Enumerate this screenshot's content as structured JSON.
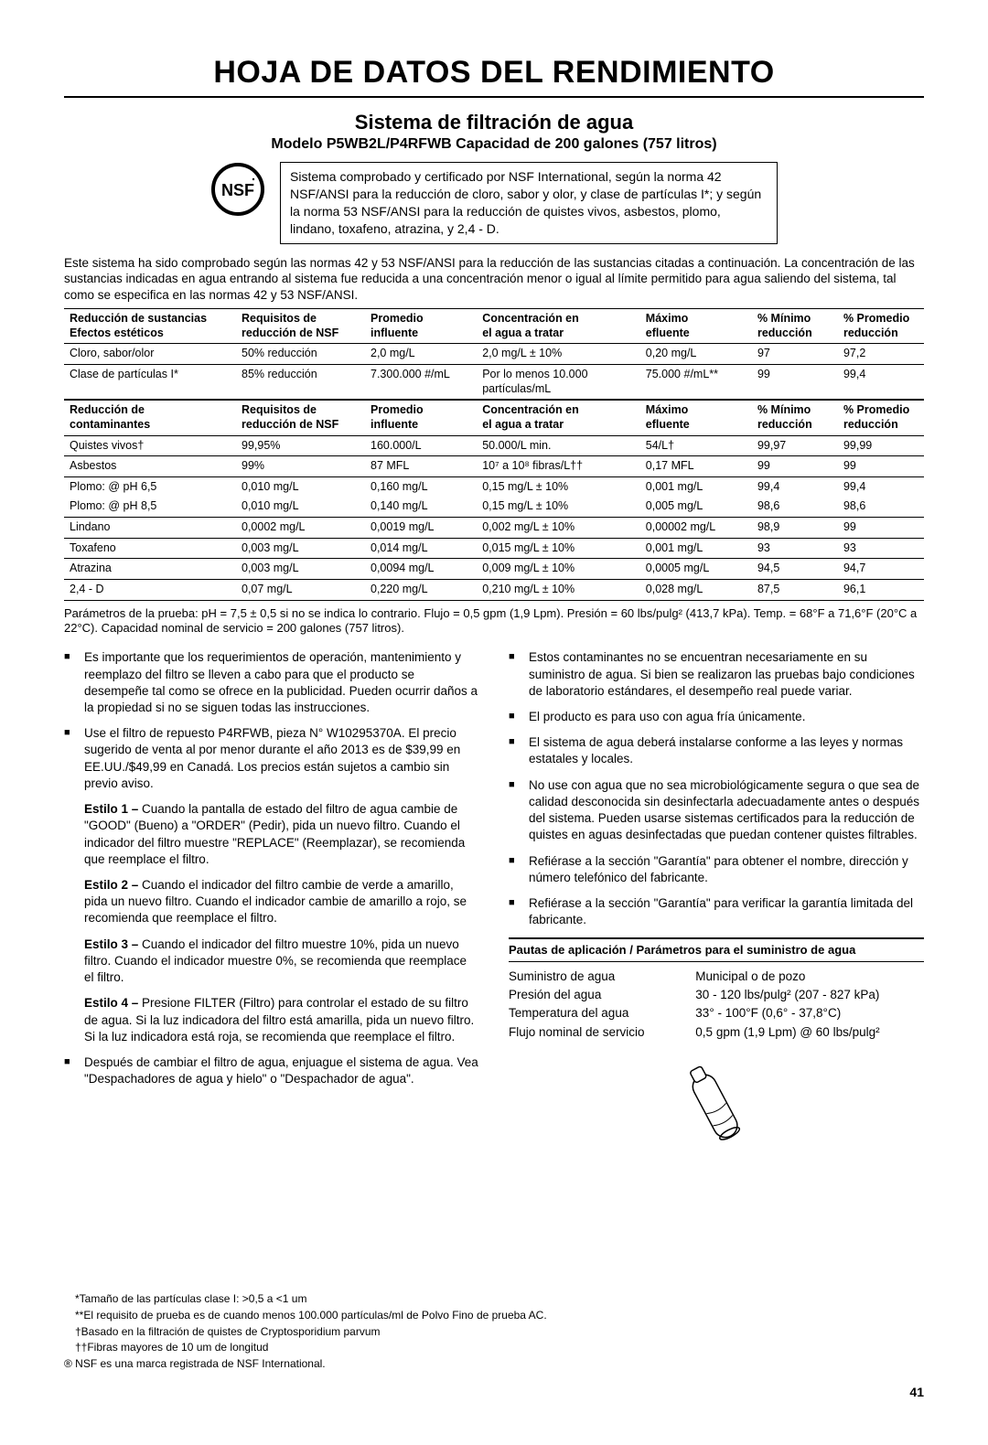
{
  "title": "HOJA DE DATOS DEL RENDIMIENTO",
  "subtitle": "Sistema de filtración de agua",
  "model": "Modelo P5WB2L/P4RFWB Capacidad de 200 galones (757 litros)",
  "cert_text": "Sistema comprobado y certificado por NSF International, según la norma 42 NSF/ANSI para la reducción de cloro, sabor y olor, y clase de partículas I*; y según la norma 53 NSF/ANSI para la reducción de quistes vivos, asbestos, plomo, lindano, toxafeno, atrazina, y 2,4 - D.",
  "intro": "Este sistema ha sido comprobado según las normas 42 y 53 NSF/ANSI para la reducción de las sustancias citadas a continuación. La concentración de las sustancias indicadas en agua entrando al sistema fue reducida a una concentración menor o igual al límite permitido para agua saliendo del sistema, tal como se especifica en las normas 42 y 53 NSF/ANSI.",
  "table1": {
    "headers": [
      "Reducción de sustancias Efectos estéticos",
      "Requisitos de reducción de NSF",
      "Promedio influente",
      "Concentración en el agua a tratar",
      "Máximo efluente",
      "% Mínimo reducción",
      "% Promedio reducción"
    ],
    "rows": [
      [
        "Cloro, sabor/olor",
        "50% reducción",
        "2,0 mg/L",
        "2,0 mg/L ± 10%",
        "0,20 mg/L",
        "97",
        "97,2"
      ],
      [
        "Clase de partículas I*",
        "85% reducción",
        "7.300.000 #/mL",
        "Por lo menos 10.000 partículas/mL",
        "75.000 #/mL**",
        "99",
        "99,4"
      ]
    ]
  },
  "table2": {
    "headers": [
      "Reducción de contaminantes",
      "Requisitos de reducción de NSF",
      "Promedio influente",
      "Concentración en el agua a tratar",
      "Máximo efluente",
      "% Mínimo reducción",
      "% Promedio reducción"
    ],
    "rows": [
      [
        "Quistes vivos†",
        "99,95%",
        "160.000/L",
        "50.000/L min.",
        "54/L†",
        "99,97",
        "99,99"
      ],
      [
        "Asbestos",
        "99%",
        "87 MFL",
        "10⁷ a 10⁸ fibras/L††",
        "0,17 MFL",
        "99",
        "99"
      ],
      [
        "Plomo: @ pH 6,5",
        "0,010 mg/L",
        "0,160 mg/L",
        "0,15 mg/L ± 10%",
        "0,001 mg/L",
        "99,4",
        "99,4"
      ],
      [
        "Plomo: @ pH 8,5",
        "0,010 mg/L",
        "0,140 mg/L",
        "0,15 mg/L ± 10%",
        "0,005 mg/L",
        "98,6",
        "98,6"
      ],
      [
        "Lindano",
        "0,0002 mg/L",
        "0,0019 mg/L",
        "0,002 mg/L ± 10%",
        "0,00002 mg/L",
        "98,9",
        "99"
      ],
      [
        "Toxafeno",
        "0,003 mg/L",
        "0,014 mg/L",
        "0,015 mg/L ± 10%",
        "0,001 mg/L",
        "93",
        "93"
      ],
      [
        "Atrazina",
        "0,003 mg/L",
        "0,0094 mg/L",
        "0,009 mg/L ± 10%",
        "0,0005 mg/L",
        "94,5",
        "94,7"
      ],
      [
        "2,4 - D",
        "0,07 mg/L",
        "0,220 mg/L",
        "0,210 mg/L ± 10%",
        "0,028 mg/L",
        "87,5",
        "96,1"
      ]
    ]
  },
  "params_note": "Parámetros de la prueba: pH = 7,5 ± 0,5 si no se indica lo contrario. Flujo = 0,5 gpm (1,9 Lpm). Presión = 60 lbs/pulg² (413,7 kPa). Temp. = 68°F a 71,6°F (20°C a 22°C). Capacidad nominal de servicio = 200 galones (757 litros).",
  "left_bullets": [
    "Es importante que los requerimientos de operación, mantenimiento y reemplazo del filtro se lleven a cabo para que el producto se desempeñe tal como se ofrece en la publicidad. Pueden ocurrir daños a la propiedad si no se siguen todas las instrucciones.",
    "Use el filtro de repuesto P4RFWB, pieza N° W10295370A. El precio sugerido de venta al por menor durante el año 2013 es de $39,99 en EE.UU./$49,99 en Canadá. Los precios están sujetos a cambio sin previo aviso."
  ],
  "styles": [
    {
      "label": "Estilo 1 –",
      "text": " Cuando la pantalla de estado del filtro de agua cambie de \"GOOD\" (Bueno) a \"ORDER\" (Pedir), pida un nuevo filtro. Cuando el indicador del filtro muestre \"REPLACE\" (Reemplazar), se recomienda que reemplace el filtro."
    },
    {
      "label": "Estilo 2 –",
      "text": " Cuando el indicador del filtro cambie de verde a amarillo, pida un nuevo filtro. Cuando el indicador cambie de amarillo a rojo, se recomienda que reemplace el filtro."
    },
    {
      "label": "Estilo 3 –",
      "text": " Cuando el indicador del filtro muestre 10%, pida un nuevo filtro. Cuando el indicador muestre 0%, se recomienda que reemplace el filtro."
    },
    {
      "label": "Estilo 4 –",
      "text": " Presione FILTER (Filtro) para controlar el estado de su filtro de agua. Si la luz indicadora del filtro está amarilla, pida un nuevo filtro. Si la luz indicadora está roja, se recomienda que reemplace el filtro."
    }
  ],
  "left_bullet_last": "Después de cambiar el filtro de agua, enjuague el sistema de agua. Vea \"Despachadores de agua y hielo\" o \"Despachador de agua\".",
  "right_bullets": [
    "Estos contaminantes no se encuentran necesariamente en su suministro de agua. Si bien se realizaron las pruebas bajo condiciones de laboratorio estándares, el desempeño real puede variar.",
    "El producto es para uso con agua fría únicamente.",
    "El sistema de agua deberá instalarse conforme a las leyes y normas estatales y locales.",
    "No use con agua que no sea microbiológicamente segura o que sea de calidad desconocida sin desinfectarla adecuadamente antes o después del sistema. Pueden usarse sistemas certificados para la reducción de quistes en aguas desinfectadas que puedan contener quistes filtrables.",
    "Refiérase a la sección \"Garantía\" para obtener el nombre, dirección y número telefónico del fabricante.",
    "Refiérase a la sección \"Garantía\" para verificar la garantía limitada del fabricante."
  ],
  "guidelines_hdr": "Pautas de aplicación / Parámetros para el suministro de agua",
  "guidelines": [
    [
      "Suministro de agua",
      "Municipal o de pozo"
    ],
    [
      "Presión del agua",
      "30 - 120 lbs/pulg² (207 - 827 kPa)"
    ],
    [
      "Temperatura del agua",
      "33° - 100°F (0,6° - 37,8°C)"
    ],
    [
      "Flujo nominal de servicio",
      "0,5 gpm (1,9 Lpm) @ 60 lbs/pulg²"
    ]
  ],
  "footnotes": [
    "*Tamaño de las partículas clase I: >0,5 a <1 um",
    "**El requisito de prueba es de cuando menos 100.000 partículas/ml de Polvo Fino de prueba AC.",
    "†Basado en la filtración de quistes de Cryptosporidium parvum",
    "††Fibras mayores de 10 um de longitud",
    "® NSF es una marca registrada de NSF International."
  ],
  "page_num": "41"
}
